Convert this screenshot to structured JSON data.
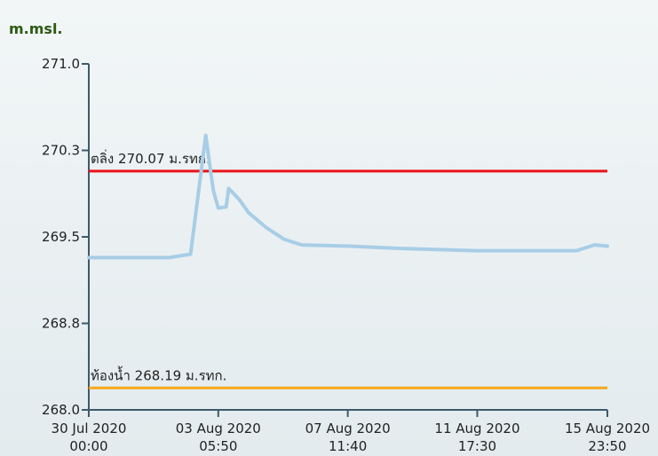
{
  "chart_data": {
    "type": "line",
    "y_axis_title": "m.msl.",
    "ylim": [
      268.0,
      271.0
    ],
    "yticks": [
      {
        "value": 268.0,
        "label": "268.0"
      },
      {
        "value": 268.75,
        "label": "268.8"
      },
      {
        "value": 269.5,
        "label": "269.5"
      },
      {
        "value": 270.25,
        "label": "270.3"
      },
      {
        "value": 271.0,
        "label": "271.0"
      }
    ],
    "xlim": [
      "2020-07-30 00:00",
      "2020-08-15 23:50"
    ],
    "xticks": [
      {
        "value": "2020-07-30 00:00",
        "label": [
          "30 Jul 2020",
          "00:00"
        ]
      },
      {
        "value": "2020-08-03 05:50",
        "label": [
          "03 Aug 2020",
          "05:50"
        ]
      },
      {
        "value": "2020-08-07 11:40",
        "label": [
          "07 Aug 2020",
          "11:40"
        ]
      },
      {
        "value": "2020-08-11 17:30",
        "label": [
          "11 Aug 2020",
          "17:30"
        ]
      },
      {
        "value": "2020-08-15 23:50",
        "label": [
          "15 Aug 2020",
          "23:50"
        ]
      }
    ],
    "series": [
      {
        "color": "#a8cde6",
        "x": [
          "2020-07-30 00:00",
          "2020-07-30 21:00",
          "2020-07-31 18:00",
          "2020-08-01 15:00",
          "2020-08-02 08:00",
          "2020-08-02 20:00",
          "2020-08-03 00:00",
          "2020-08-03 02:00",
          "2020-08-03 05:50",
          "2020-08-03 12:00",
          "2020-08-03 14:00",
          "2020-08-03 22:36",
          "2020-08-04 05:36",
          "2020-08-04 19:30",
          "2020-08-05 09:30",
          "2020-08-05 23:30",
          "2020-08-07 11:40",
          "2020-08-09 04:00",
          "2020-08-11 17:30",
          "2020-08-13 12:45",
          "2020-08-14 23:30",
          "2020-08-15 13:36",
          "2020-08-15 23:50"
        ],
        "values": [
          269.32,
          269.32,
          269.32,
          269.32,
          269.35,
          270.38,
          270.05,
          269.9,
          269.75,
          269.76,
          269.92,
          269.82,
          269.71,
          269.58,
          269.48,
          269.43,
          269.42,
          269.4,
          269.38,
          269.38,
          269.38,
          269.43,
          269.42
        ]
      }
    ],
    "reference_lines": [
      {
        "label": "ตลิ่ง 270.07 ม.รทก.",
        "value": 270.07,
        "color": "#e8141b"
      },
      {
        "label": "ท้องน้ำ 268.19 ม.รทก.",
        "value": 268.19,
        "color": "#f5a81c"
      }
    ]
  }
}
